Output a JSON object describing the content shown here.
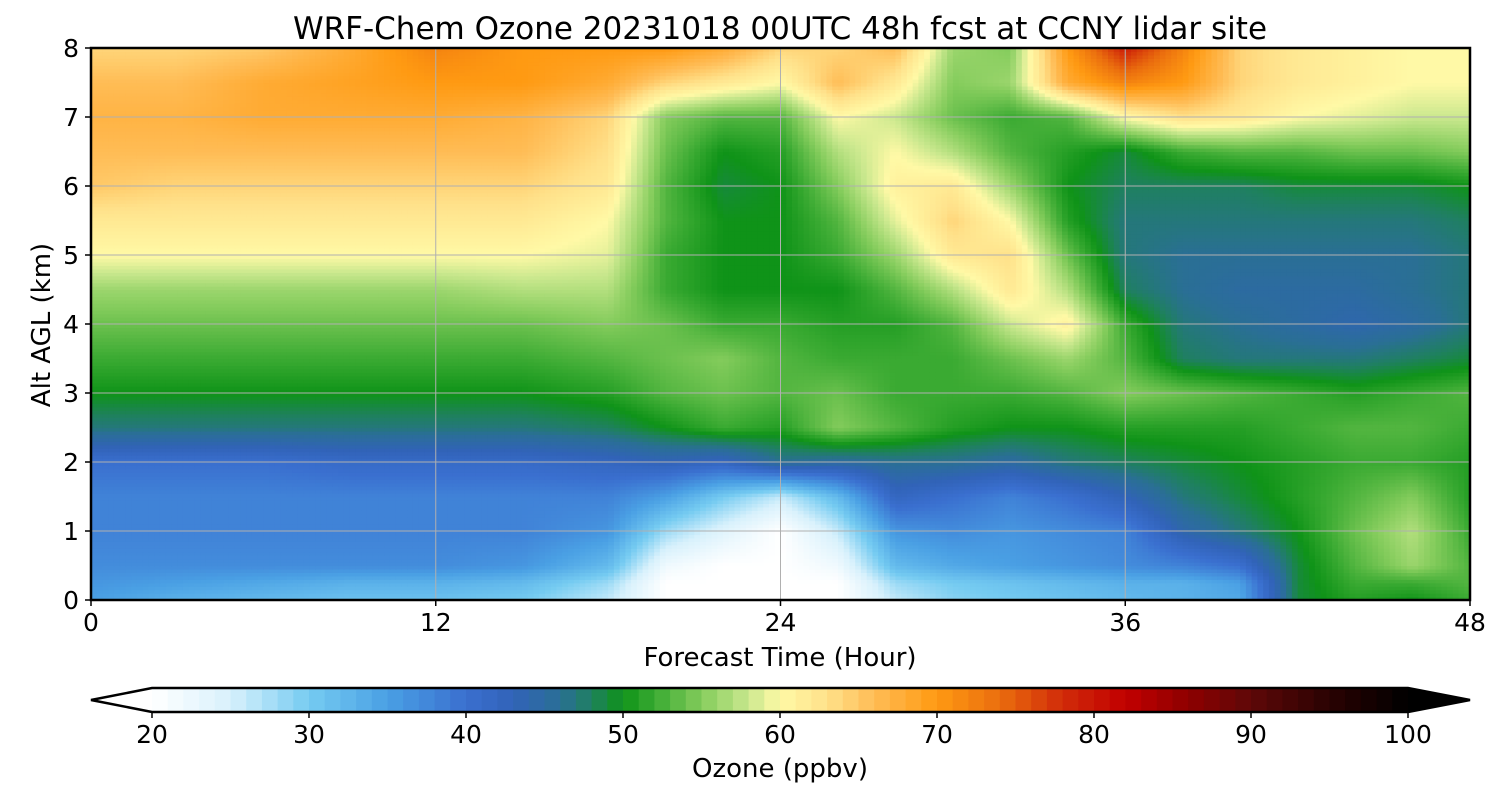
{
  "chart_data": {
    "type": "heatmap",
    "title": "WRF-Chem Ozone  20231018 00UTC 48h fcst at CCNY lidar site",
    "xlabel": "Forecast Time (Hour)",
    "ylabel": "Alt AGL (km)",
    "xlim": [
      0,
      48
    ],
    "ylim": [
      0,
      8
    ],
    "xticks": [
      0,
      12,
      24,
      36,
      48
    ],
    "yticks": [
      0,
      1,
      2,
      3,
      4,
      5,
      6,
      7,
      8
    ],
    "grid": true,
    "x": [
      0,
      3,
      6,
      9,
      12,
      15,
      18,
      20,
      22,
      24,
      26,
      28,
      30,
      32,
      34,
      36,
      38,
      40,
      42,
      44,
      46,
      48
    ],
    "y": [
      0,
      0.25,
      0.5,
      1,
      1.5,
      2,
      2.5,
      3,
      3.5,
      4,
      4.5,
      5,
      5.5,
      6,
      6.5,
      7,
      7.5,
      8
    ],
    "z": [
      [
        35,
        33,
        32,
        31,
        31,
        30,
        26,
        20,
        20,
        20,
        20,
        26,
        29,
        30,
        31,
        32,
        33,
        34,
        49,
        51,
        50,
        52
      ],
      [
        36,
        35,
        34,
        33,
        33,
        32,
        28,
        20,
        20,
        20,
        20,
        28,
        30,
        31,
        32,
        33,
        33,
        35,
        49,
        52,
        52,
        53
      ],
      [
        37,
        37,
        37,
        37,
        37,
        36,
        32,
        22,
        20,
        20,
        22,
        32,
        34,
        35,
        36,
        37,
        38,
        40,
        49,
        53,
        56,
        53
      ],
      [
        38,
        38,
        38,
        38,
        38,
        38,
        36,
        28,
        24,
        20,
        26,
        36,
        37,
        36,
        37,
        38,
        44,
        47,
        50,
        54,
        57,
        52
      ],
      [
        38,
        38,
        38,
        38,
        38,
        38,
        38,
        35,
        30,
        26,
        32,
        42,
        40,
        38,
        40,
        43,
        47,
        49,
        51,
        53,
        55,
        51
      ],
      [
        40,
        40,
        40,
        41,
        41,
        41,
        42,
        43,
        42,
        46,
        45,
        46,
        46,
        45,
        47,
        48,
        49,
        50,
        51,
        52,
        52,
        51
      ],
      [
        47,
        47,
        47,
        47,
        47,
        47,
        48,
        50,
        52,
        51,
        55,
        53,
        51,
        50,
        50,
        51,
        51,
        51,
        52,
        53,
        53,
        52
      ],
      [
        50,
        50,
        50,
        50,
        50,
        50,
        51,
        53,
        54,
        53,
        54,
        52,
        52,
        52,
        53,
        55,
        54,
        53,
        52,
        51,
        52,
        53
      ],
      [
        52,
        52,
        52,
        52,
        52,
        52,
        53,
        54,
        55,
        53,
        52,
        52,
        52,
        54,
        56,
        53,
        48,
        47,
        47,
        47,
        48,
        49
      ],
      [
        54,
        54,
        54,
        54,
        54,
        54,
        55,
        54,
        52,
        52,
        51,
        51,
        53,
        58,
        61,
        52,
        47,
        46,
        45,
        44,
        45,
        47
      ],
      [
        56,
        56,
        56,
        56,
        56,
        57,
        57,
        52,
        50,
        50,
        50,
        53,
        57,
        62,
        57,
        48,
        46,
        45,
        45,
        45,
        46,
        47
      ],
      [
        60,
        60,
        60,
        60,
        60,
        60,
        59,
        52,
        50,
        50,
        52,
        56,
        62,
        63,
        54,
        47,
        46,
        46,
        46,
        46,
        46,
        47
      ],
      [
        62,
        62,
        62,
        62,
        62,
        62,
        60,
        53,
        50,
        50,
        53,
        59,
        64,
        60,
        51,
        47,
        47,
        47,
        47,
        47,
        47,
        48
      ],
      [
        65,
        64,
        64,
        64,
        64,
        64,
        62,
        53,
        49,
        50,
        55,
        61,
        62,
        56,
        50,
        48,
        48,
        48,
        49,
        49,
        49,
        50
      ],
      [
        66,
        66,
        66,
        66,
        66,
        66,
        63,
        54,
        50,
        51,
        57,
        60,
        57,
        53,
        51,
        49,
        52,
        53,
        53,
        54,
        54,
        55
      ],
      [
        67,
        67,
        68,
        68,
        68,
        67,
        64,
        55,
        53,
        53,
        60,
        58,
        54,
        52,
        53,
        60,
        63,
        62,
        60,
        59,
        58,
        58
      ],
      [
        66,
        66,
        68,
        69,
        70,
        70,
        68,
        64,
        62,
        60,
        66,
        62,
        55,
        56,
        68,
        72,
        70,
        64,
        62,
        61,
        60,
        60
      ],
      [
        64,
        64,
        65,
        68,
        72,
        70,
        70,
        70,
        68,
        64,
        64,
        66,
        56,
        55,
        70,
        79,
        72,
        64,
        62,
        61,
        60,
        60
      ]
    ],
    "colorbar": {
      "label": "Ozone  (ppbv)",
      "min": 20,
      "max": 100,
      "ticks": [
        20,
        30,
        40,
        50,
        60,
        70,
        80,
        90,
        100
      ],
      "extend": "both",
      "under_color": "#ffffff",
      "over_color": "#000000",
      "stops": [
        {
          "v": 20,
          "c": "#ffffff"
        },
        {
          "v": 25,
          "c": "#d8f1fc"
        },
        {
          "v": 30,
          "c": "#75cbf1"
        },
        {
          "v": 35,
          "c": "#4aa0e4"
        },
        {
          "v": 40,
          "c": "#3a6fcf"
        },
        {
          "v": 43,
          "c": "#3163b8"
        },
        {
          "v": 46,
          "c": "#2a6f95"
        },
        {
          "v": 48,
          "c": "#1f8060"
        },
        {
          "v": 50,
          "c": "#0f9318"
        },
        {
          "v": 52,
          "c": "#3aaa32"
        },
        {
          "v": 55,
          "c": "#84cc5c"
        },
        {
          "v": 58,
          "c": "#cae88e"
        },
        {
          "v": 60,
          "c": "#fff9a6"
        },
        {
          "v": 63,
          "c": "#ffe18a"
        },
        {
          "v": 66,
          "c": "#ffbc55"
        },
        {
          "v": 70,
          "c": "#ff9a12"
        },
        {
          "v": 74,
          "c": "#ea6d0e"
        },
        {
          "v": 78,
          "c": "#d12b09"
        },
        {
          "v": 82,
          "c": "#c10000"
        },
        {
          "v": 86,
          "c": "#8e0000"
        },
        {
          "v": 90,
          "c": "#5e0808"
        },
        {
          "v": 95,
          "c": "#2a0202"
        },
        {
          "v": 100,
          "c": "#000000"
        }
      ]
    }
  }
}
